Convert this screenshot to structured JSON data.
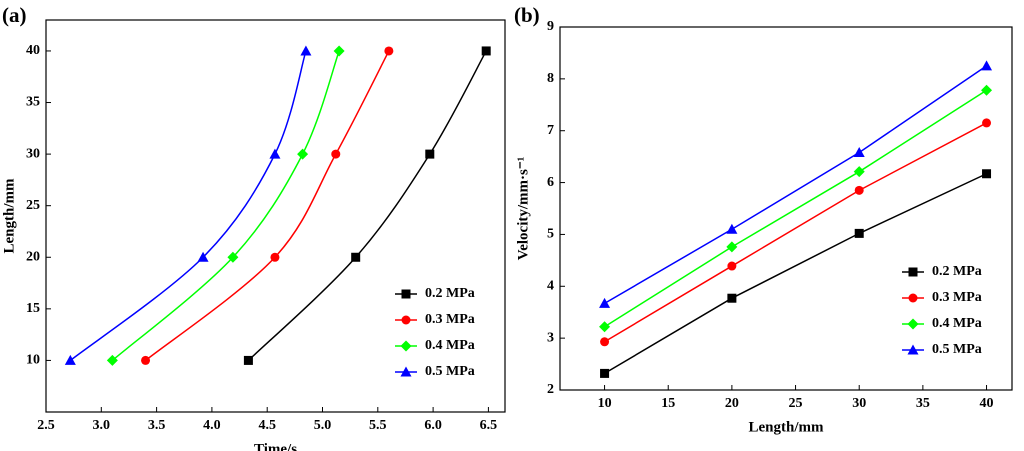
{
  "chart_data": [
    {
      "type": "scatter",
      "panel_label": "(a)",
      "x_label": "Time/s",
      "y_label": "Length/mm",
      "xlim": [
        2.5,
        6.65
      ],
      "ylim": [
        5,
        43
      ],
      "xticks": [
        2.5,
        {
          "value": 3,
          "label": "3.0"
        },
        3.5,
        {
          "value": 4,
          "label": "4.0"
        },
        4.5,
        {
          "value": 5,
          "label": "5.0"
        },
        5.5,
        {
          "value": 6,
          "label": "6.0"
        },
        6.5
      ],
      "yticks": [
        10,
        15,
        20,
        25,
        30,
        35,
        40
      ],
      "legend": "lower right",
      "series": [
        {
          "name": "0.2 MPa",
          "color": "#000000",
          "marker": "square",
          "x": [
            4.33,
            5.3,
            5.97,
            6.48
          ],
          "values": [
            10,
            20,
            30,
            40
          ]
        },
        {
          "name": "0.3 MPa",
          "color": "#ff0000",
          "marker": "circle",
          "x": [
            3.4,
            4.57,
            5.12,
            5.6
          ],
          "values": [
            10,
            20,
            30,
            40
          ]
        },
        {
          "name": "0.4 MPa",
          "color": "#00ff00",
          "marker": "diamond",
          "x": [
            3.1,
            4.19,
            4.82,
            5.15
          ],
          "values": [
            10,
            20,
            30,
            40
          ]
        },
        {
          "name": "0.5 MPa",
          "color": "#0000ff",
          "marker": "triangle",
          "x": [
            2.72,
            3.92,
            4.57,
            4.85
          ],
          "values": [
            10,
            20,
            30,
            40
          ]
        }
      ]
    },
    {
      "type": "line",
      "panel_label": "(b)",
      "x_label": "Length/mm",
      "y_label": "Velocity/mm·s⁻¹",
      "xlim": [
        6.5,
        42
      ],
      "ylim": [
        2,
        9
      ],
      "xticks": [
        10,
        15,
        20,
        25,
        30,
        35,
        40
      ],
      "yticks": [
        2,
        3,
        4,
        5,
        6,
        7,
        8,
        9
      ],
      "legend": "lower right",
      "x": [
        10,
        20,
        30,
        40
      ],
      "series": [
        {
          "name": "0.2 MPa",
          "color": "#000000",
          "marker": "square",
          "values": [
            2.32,
            3.77,
            5.02,
            6.17
          ]
        },
        {
          "name": "0.3 MPa",
          "color": "#ff0000",
          "marker": "circle",
          "values": [
            2.93,
            4.39,
            5.85,
            7.15
          ]
        },
        {
          "name": "0.4 MPa",
          "color": "#00ff00",
          "marker": "diamond",
          "values": [
            3.22,
            4.76,
            6.21,
            7.78
          ]
        },
        {
          "name": "0.5 MPa",
          "color": "#0000ff",
          "marker": "triangle",
          "values": [
            3.67,
            5.1,
            6.58,
            8.25
          ]
        }
      ]
    }
  ]
}
